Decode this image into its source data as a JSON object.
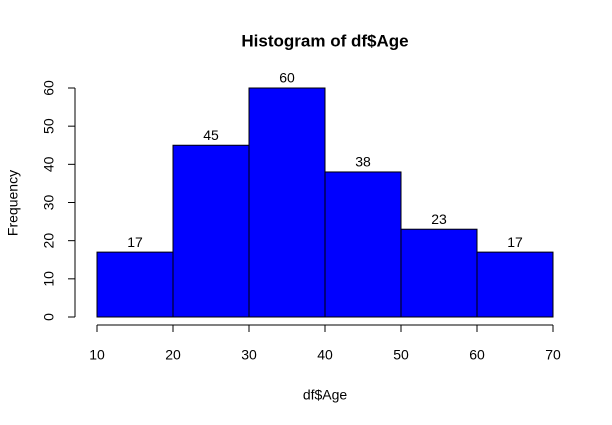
{
  "chart_data": {
    "type": "histogram",
    "title": "Histogram of df$Age",
    "x_label": "df$Age",
    "y_label": "Frequency",
    "bins": [
      10,
      20,
      30,
      40,
      50,
      60,
      70
    ],
    "counts": [
      17,
      45,
      60,
      38,
      23,
      17
    ],
    "color": "#0000ff",
    "xlim": [
      10,
      70
    ],
    "xticks": [
      10,
      20,
      30,
      40,
      50,
      60,
      70
    ],
    "ylim": [
      0,
      60
    ],
    "yticks": [
      0,
      10,
      20,
      30,
      40,
      50,
      60
    ],
    "data_labels": true
  }
}
